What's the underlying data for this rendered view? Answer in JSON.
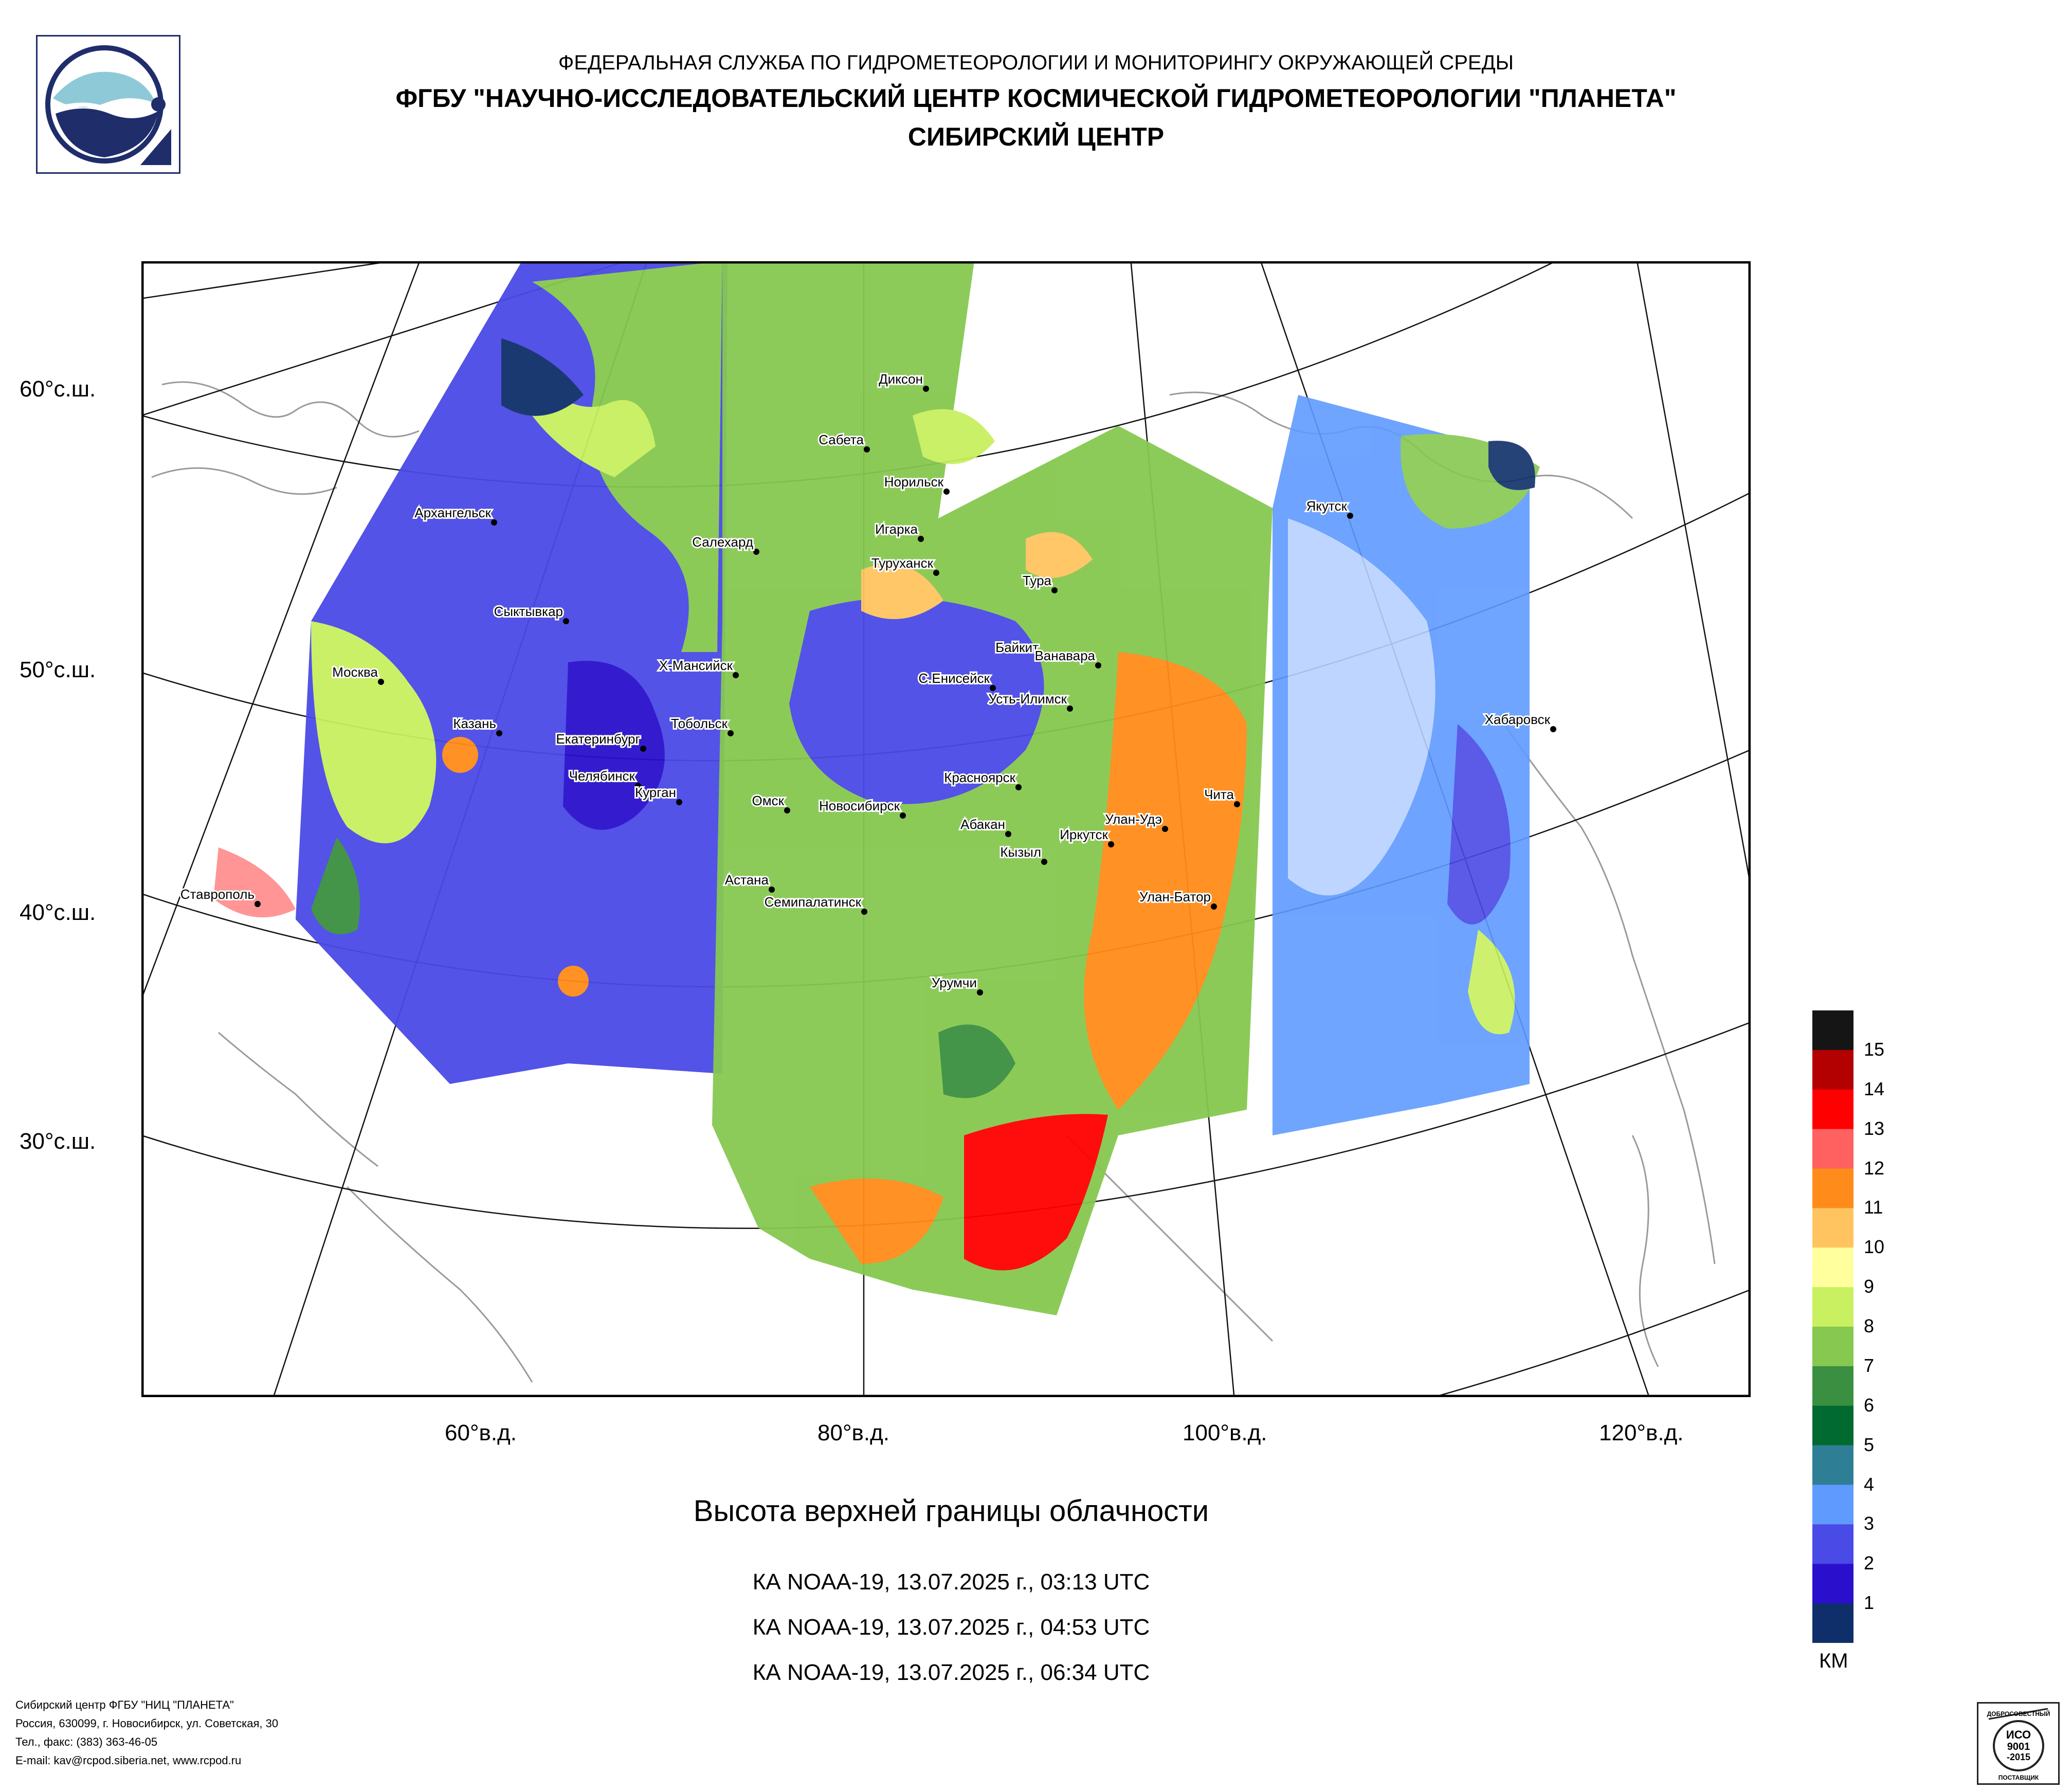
{
  "header": {
    "line1": "ФЕДЕРАЛЬНАЯ СЛУЖБА ПО ГИДРОМЕТЕОРОЛОГИИ И МОНИТОРИНГУ ОКРУЖАЮЩЕЙ СРЕДЫ",
    "line2": "ФГБУ \"НАУЧНО-ИССЛЕДОВАТЕЛЬСКИЙ ЦЕНТР КОСМИЧЕСКОЙ ГИДРОМЕТЕОРОЛОГИИ \"ПЛАНЕТА\"",
    "line3": "СИБИРСКИЙ ЦЕНТР"
  },
  "map": {
    "lat_labels": [
      "60°с.ш.",
      "50°с.ш.",
      "40°с.ш.",
      "30°с.ш."
    ],
    "lon_labels": [
      "60°в.д.",
      "80°в.д.",
      "100°в.д.",
      "120°в.д."
    ],
    "cities": [
      "Диксон",
      "Сабета",
      "Норильск",
      "Игарка",
      "Туруханск",
      "Тура",
      "Якутск",
      "Архангельск",
      "Салехард",
      "Сыктывкар",
      "Байкит",
      "Ванавара",
      "Москва",
      "Х-Мансийск",
      "С.Енисейск",
      "Усть-Илимск",
      "Казань",
      "Тобольск",
      "Екатеринбург",
      "Хабаровск",
      "Челябинск",
      "Курган",
      "Красноярск",
      "Чита",
      "Омск",
      "Новосибирск",
      "Абакан",
      "Улан-Удэ",
      "Иркутск",
      "Кызыл",
      "Ставрополь",
      "Астана",
      "Семипалатинск",
      "Улан-Батор",
      "Урумчи"
    ]
  },
  "caption": {
    "title": "Высота верхней границы облачности",
    "passes": [
      "КА NOAA-19, 13.07.2025 г., 03:13 UTC",
      "КА NOAA-19, 13.07.2025 г., 04:53 UTC",
      "КА NOAA-19, 13.07.2025 г., 06:34 UTC"
    ]
  },
  "legend": {
    "unit": "КМ",
    "levels": [
      "15",
      "14",
      "13",
      "12",
      "11",
      "10",
      "9",
      "8",
      "7",
      "6",
      "5",
      "4",
      "3",
      "2",
      "1"
    ],
    "colors": [
      "#151515",
      "#b30000",
      "#ff0000",
      "#ff6060",
      "#ff8c1a",
      "#ffc460",
      "#ffff9e",
      "#c8f060",
      "#86c850",
      "#3a9040",
      "#006a30",
      "#2e7f95",
      "#5f9bff",
      "#4a4ae6",
      "#2a10cc",
      "#0f2f6a"
    ]
  },
  "footer": {
    "line1": "Сибирский центр ФГБУ \"НИЦ \"ПЛАНЕТА\"",
    "line2": "Россия, 630099, г. Новосибирск, ул. Советская, 30",
    "line3": "Тел., факс: (383) 363-46-05",
    "line4": "E-mail: kav@rcpod.siberia.net, www.rcpod.ru"
  },
  "certificate": {
    "top": "ДОБРОСОВЕСТНЫЙ",
    "line1": "ИСО",
    "line2": "9001",
    "line3": "-2015",
    "bottom": "ПОСТАВЩИК"
  }
}
